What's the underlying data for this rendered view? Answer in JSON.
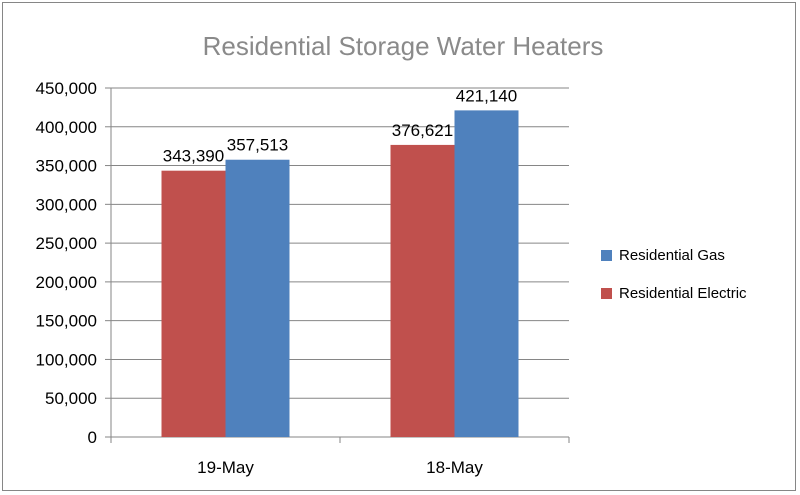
{
  "chart_data": {
    "type": "bar",
    "title": "Residential Storage Water Heaters",
    "categories": [
      "19-May",
      "18-May"
    ],
    "series": [
      {
        "name": "Residential Electric",
        "values": [
          343390,
          376621
        ],
        "color": "#c0504d"
      },
      {
        "name": "Residential Gas",
        "values": [
          357513,
          421140
        ],
        "color": "#4f81bd"
      }
    ],
    "data_labels": [
      [
        "343,390",
        "376,621"
      ],
      [
        "357,513",
        "421,140"
      ]
    ],
    "ylim": [
      0,
      450000
    ],
    "y_ticks": [
      {
        "value": 0,
        "label": "0"
      },
      {
        "value": 50000,
        "label": "50,000"
      },
      {
        "value": 100000,
        "label": "100,000"
      },
      {
        "value": 150000,
        "label": "150,000"
      },
      {
        "value": 200000,
        "label": "200,000"
      },
      {
        "value": 250000,
        "label": "250,000"
      },
      {
        "value": 300000,
        "label": "300,000"
      },
      {
        "value": 350000,
        "label": "350,000"
      },
      {
        "value": 400000,
        "label": "400,000"
      },
      {
        "value": 450000,
        "label": "450,000"
      }
    ],
    "xlabel": "",
    "ylabel": "",
    "grid": true,
    "legend_position": "right",
    "legend_order": [
      "Residential Gas",
      "Residential Electric"
    ]
  }
}
